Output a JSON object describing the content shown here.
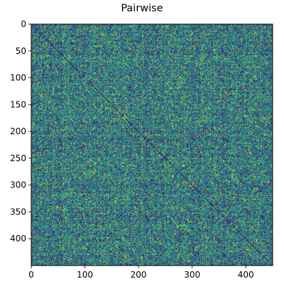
{
  "chart_data": {
    "type": "heatmap",
    "title": "Pairwise",
    "xlabel": "",
    "ylabel": "",
    "rows": 450,
    "cols": 450,
    "xlim": [
      0,
      450
    ],
    "ylim": [
      450,
      0
    ],
    "x_ticks": [
      0,
      100,
      200,
      300,
      400
    ],
    "y_ticks": [
      0,
      50,
      100,
      150,
      200,
      250,
      300,
      350,
      400
    ],
    "colormap": "viridis",
    "value_range": [
      0,
      1
    ],
    "diagonal_value": 0,
    "grid": false,
    "legend": "none",
    "colors": {
      "low": "#440154",
      "mid_low": "#31688e",
      "mid": "#21918c",
      "mid_high": "#35b779",
      "high": "#fde725",
      "axis": "#000000",
      "background": "#ffffff"
    }
  }
}
